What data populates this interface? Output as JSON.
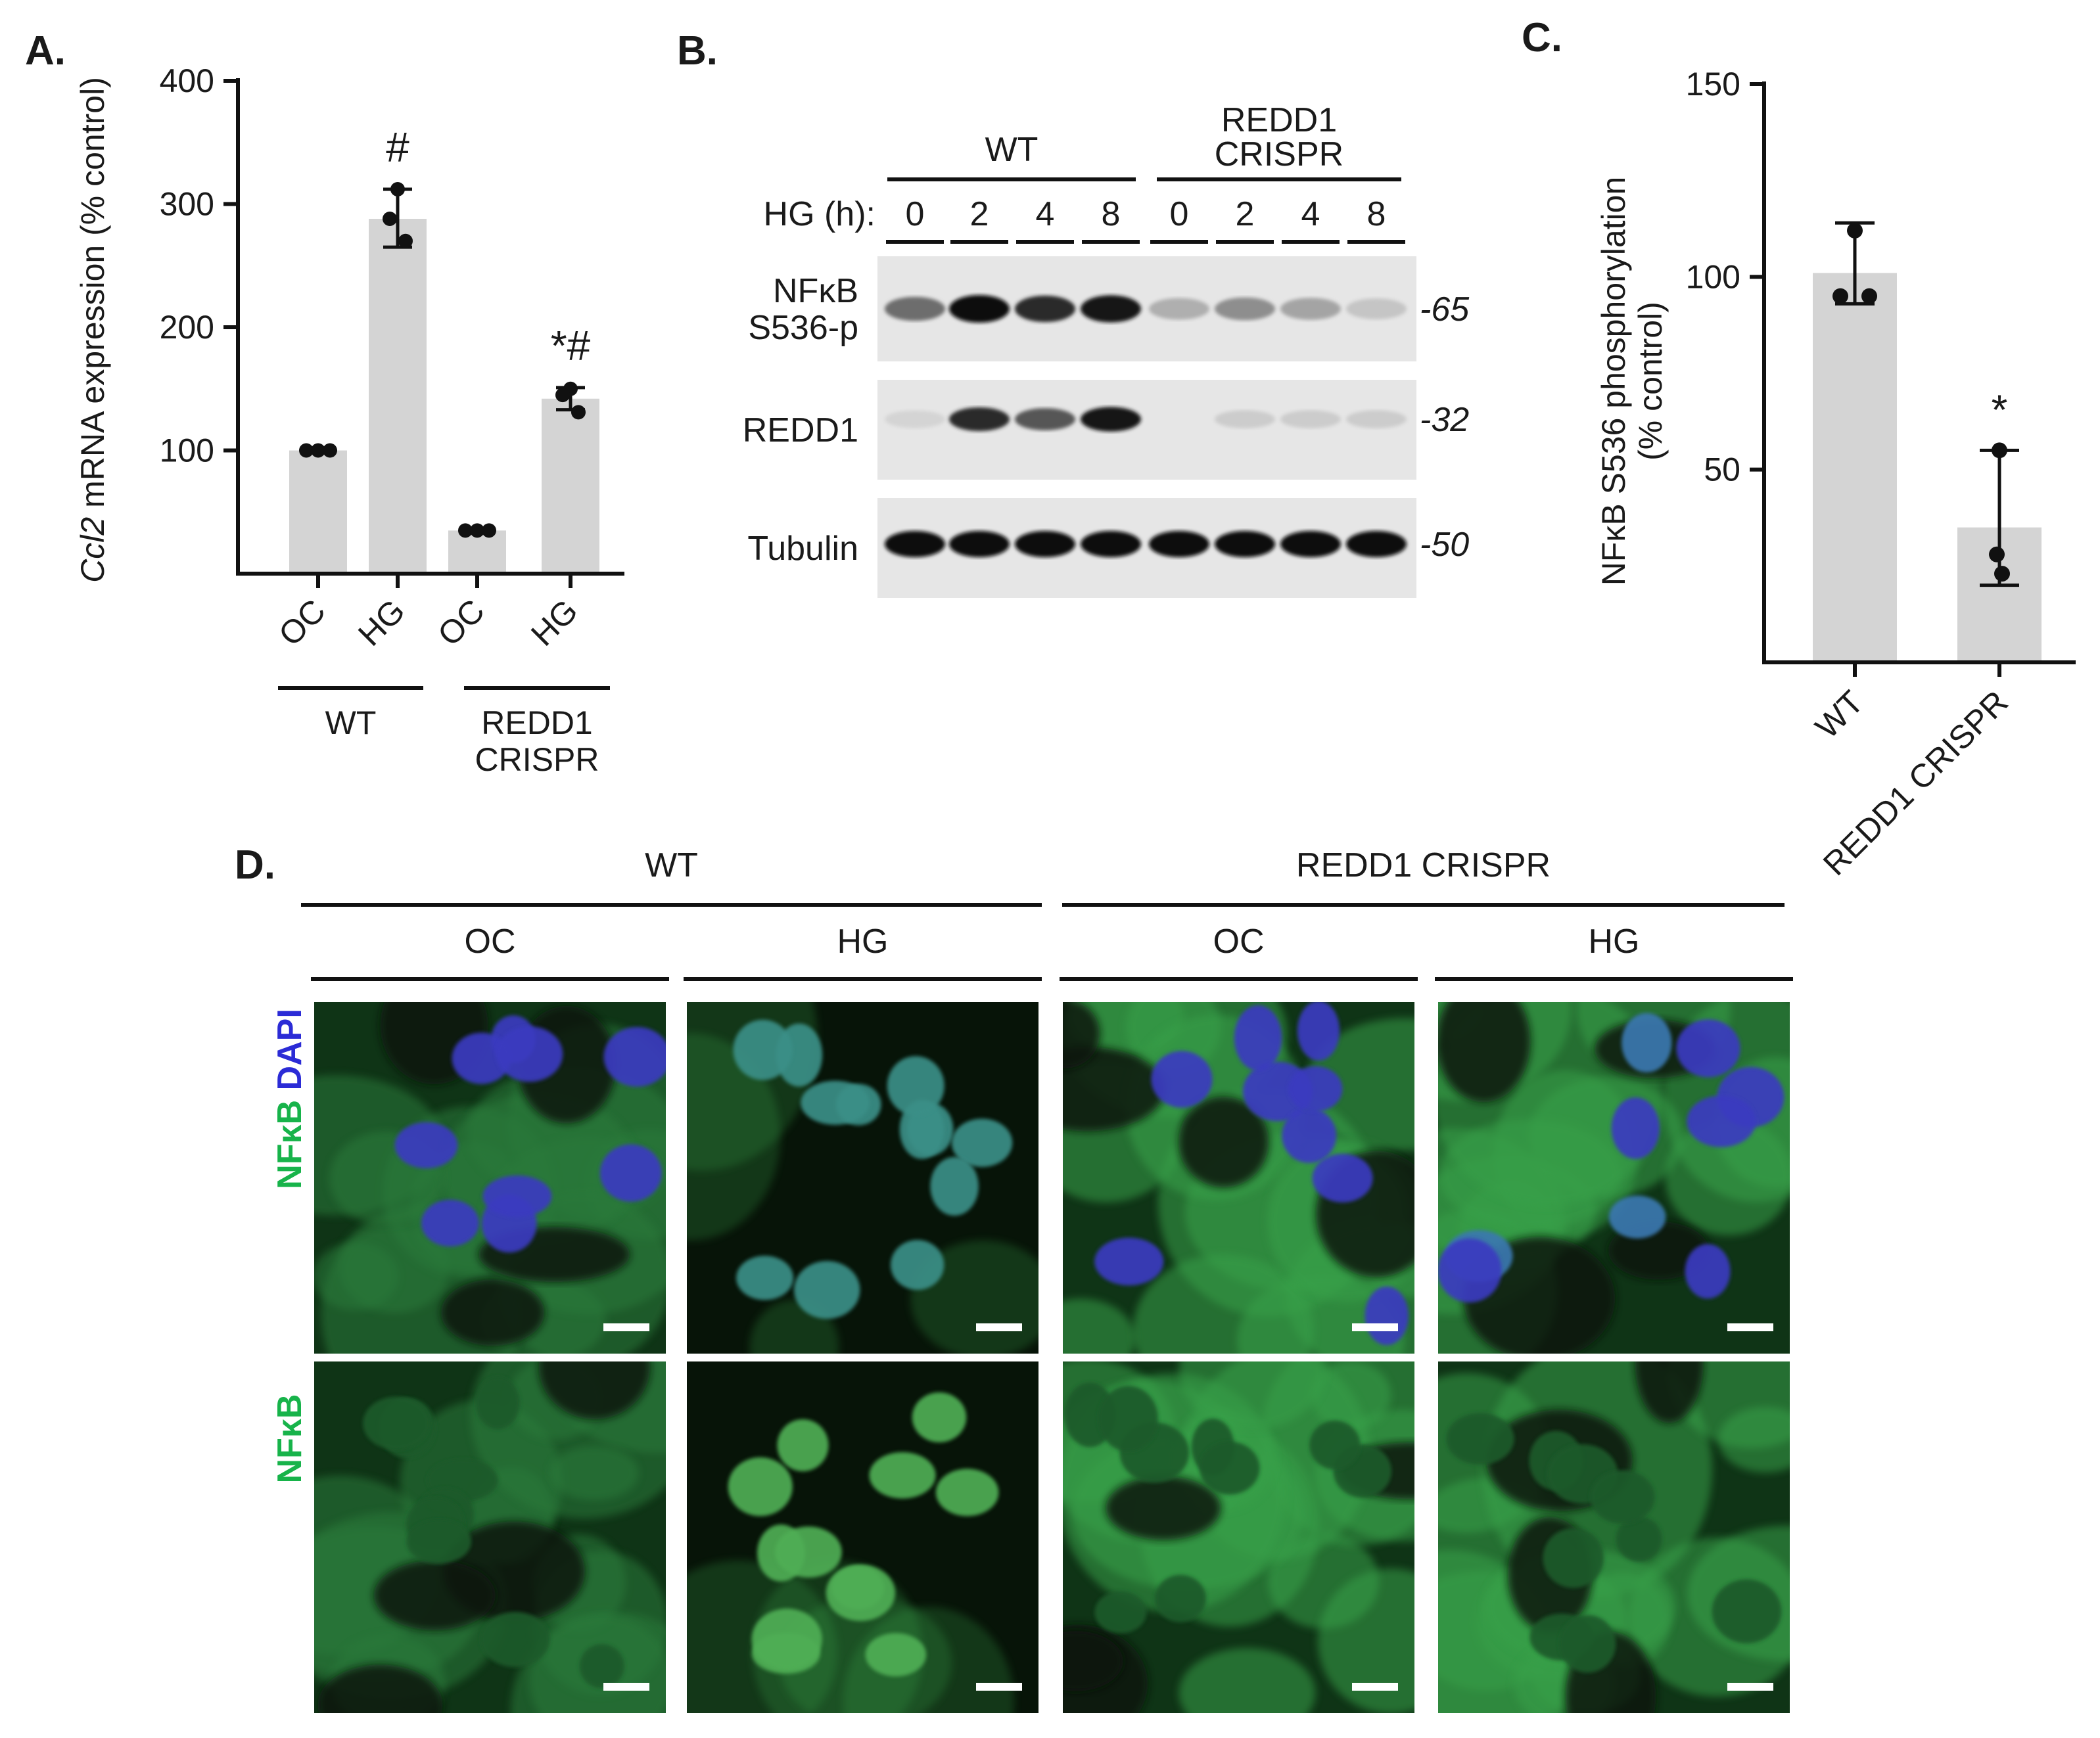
{
  "panels": {
    "a": {
      "label": "A."
    },
    "b": {
      "label": "B."
    },
    "c": {
      "label": "C."
    },
    "d": {
      "label": "D."
    }
  },
  "chart_data": [
    {
      "id": "A",
      "type": "bar",
      "categories": [
        "OC",
        "HG",
        "OC",
        "HG"
      ],
      "groups": [
        {
          "label": "WT",
          "categories": [
            0,
            1
          ]
        },
        {
          "label": "REDD1\nCRISPR",
          "categories": [
            2,
            3
          ]
        }
      ],
      "values": [
        100,
        288,
        35,
        142
      ],
      "error": [
        [
          null,
          null
        ],
        [
          265,
          312
        ],
        [
          null,
          null
        ],
        [
          133,
          151
        ]
      ],
      "points": [
        [
          100,
          100,
          100
        ],
        [
          312,
          288,
          270
        ],
        [
          35,
          35,
          35
        ],
        [
          150,
          145,
          131
        ]
      ],
      "annotations": [
        "",
        "#",
        "",
        "*#"
      ],
      "ylabel_italic": "Ccl2",
      "ylabel_rest": " mRNA expression (% control)",
      "ylim": [
        0,
        400
      ],
      "yticks": [
        100,
        200,
        300,
        400
      ],
      "colors": {
        "bar": "#d4d4d4",
        "point": "#111111"
      }
    },
    {
      "id": "C",
      "type": "bar",
      "categories": [
        "WT",
        "REDD1 CRISPR"
      ],
      "values": [
        101,
        35
      ],
      "error": [
        [
          93,
          114
        ],
        [
          20,
          55
        ]
      ],
      "points": [
        [
          112,
          95,
          95
        ],
        [
          55,
          28,
          23
        ]
      ],
      "annotations": [
        "",
        "*"
      ],
      "ylabel_line1": "NFκB S536  phosphorylation",
      "ylabel_line2": "(% control)",
      "ylim": [
        0,
        150
      ],
      "yticks": [
        50,
        100,
        150
      ],
      "colors": {
        "bar": "#d4d4d4",
        "point": "#111111"
      }
    }
  ],
  "blot": {
    "groups": [
      "WT",
      "REDD1\nCRISPR"
    ],
    "hg_label": "HG (h):",
    "timepoints": [
      "0",
      "2",
      "4",
      "8",
      "0",
      "2",
      "4",
      "8"
    ],
    "rows": [
      {
        "label": "NFκB\nS536-p",
        "mw": "-65",
        "intensity": [
          0.55,
          1.0,
          0.85,
          0.95,
          0.25,
          0.4,
          0.3,
          0.15
        ]
      },
      {
        "label": "REDD1",
        "mw": "-32",
        "intensity": [
          0.08,
          0.85,
          0.65,
          0.95,
          0.0,
          0.12,
          0.12,
          0.12
        ]
      },
      {
        "label": "Tubulin",
        "mw": "-50",
        "intensity": [
          1.0,
          1.0,
          1.0,
          1.0,
          1.0,
          1.0,
          1.0,
          1.0
        ]
      }
    ]
  },
  "micrographs": {
    "groups": [
      "WT",
      "REDD1 CRISPR"
    ],
    "conditions": [
      "OC",
      "HG",
      "OC",
      "HG"
    ],
    "row_labels": [
      [
        {
          "text": "DAPI",
          "color": "#2b2bd6"
        },
        {
          "text": "NFκB",
          "color": "#17b34a"
        }
      ],
      [
        {
          "text": "NFκB",
          "color": "#17b34a"
        }
      ]
    ],
    "colors": {
      "dapi": "#2f2fd0",
      "nfkb": "#2fa84a",
      "scale_bar": "#ffffff"
    }
  }
}
